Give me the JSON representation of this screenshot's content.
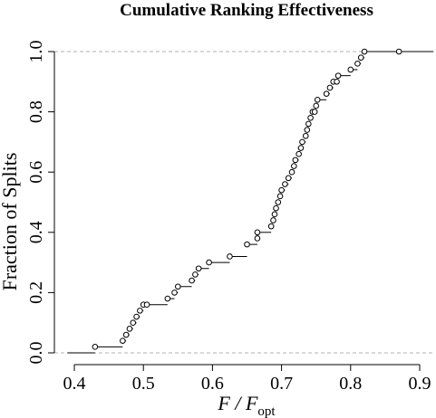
{
  "chart_data": {
    "type": "line",
    "subtype": "step-ecdf",
    "title": "Cumulative Ranking Effectiveness",
    "xlabel": {
      "main": "F / F",
      "subscript": "opt"
    },
    "ylabel": "Fraction of Splits",
    "xlim": [
      0.39,
      0.92
    ],
    "ylim": [
      0.0,
      1.0
    ],
    "x_ticks": [
      0.4,
      0.5,
      0.6,
      0.7,
      0.8,
      0.9
    ],
    "x_tick_labels": [
      "0.4",
      "0.5",
      "0.6",
      "0.7",
      "0.8",
      "0.9"
    ],
    "y_ticks": [
      0.0,
      0.2,
      0.4,
      0.6,
      0.8,
      1.0
    ],
    "y_tick_labels": [
      "0.0",
      "0.2",
      "0.4",
      "0.6",
      "0.8",
      "1.0"
    ],
    "reference_lines": [
      0.0,
      1.0
    ],
    "grid": false,
    "legend": "none",
    "colors": {
      "line": "#000000",
      "points": "#000000",
      "reference": "#b0b0b0"
    },
    "series": [
      {
        "x": [
          0.43,
          0.47,
          0.475,
          0.48,
          0.485,
          0.49,
          0.495,
          0.5,
          0.505,
          0.535,
          0.545,
          0.55,
          0.57,
          0.575,
          0.58,
          0.595,
          0.625,
          0.65,
          0.665,
          0.665,
          0.685,
          0.688,
          0.69,
          0.692,
          0.695,
          0.698,
          0.7,
          0.705,
          0.71,
          0.715,
          0.718,
          0.72,
          0.725,
          0.728,
          0.73,
          0.735,
          0.737,
          0.739,
          0.742,
          0.745,
          0.748,
          0.75,
          0.752,
          0.765,
          0.77,
          0.775,
          0.78,
          0.782,
          0.8,
          0.81,
          0.815,
          0.82,
          0.87
        ],
        "y": [
          0.02,
          0.04,
          0.06,
          0.08,
          0.1,
          0.12,
          0.14,
          0.16,
          0.16,
          0.18,
          0.2,
          0.22,
          0.24,
          0.26,
          0.28,
          0.3,
          0.32,
          0.36,
          0.38,
          0.4,
          0.42,
          0.44,
          0.46,
          0.48,
          0.5,
          0.52,
          0.54,
          0.56,
          0.58,
          0.6,
          0.62,
          0.64,
          0.66,
          0.68,
          0.7,
          0.72,
          0.74,
          0.76,
          0.78,
          0.8,
          0.8,
          0.82,
          0.84,
          0.86,
          0.88,
          0.9,
          0.9,
          0.92,
          0.94,
          0.96,
          0.98,
          1.0,
          1.0
        ]
      }
    ]
  }
}
